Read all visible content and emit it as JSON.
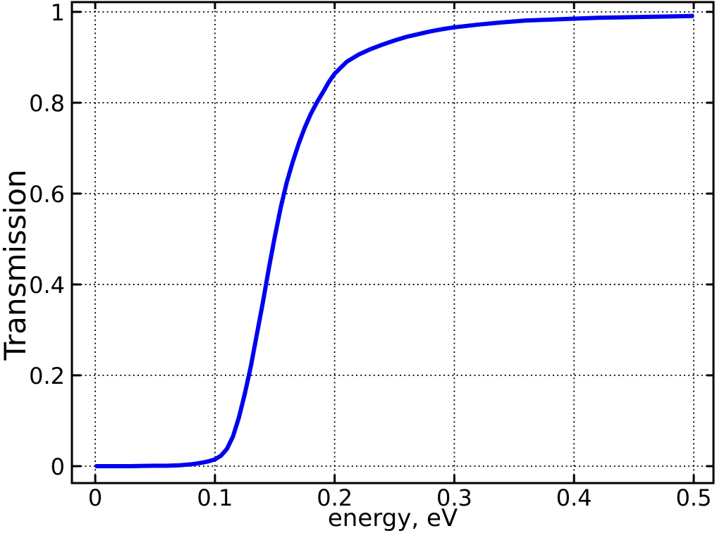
{
  "figure": {
    "background": "#ffffff",
    "frame_color": "#000000",
    "text_color": "#000000"
  },
  "chart_data": {
    "type": "line",
    "title": "",
    "xlabel": "energy, eV",
    "ylabel": "Transmission",
    "xlim": [
      -0.0195,
      0.5165
    ],
    "ylim": [
      -0.0372,
      1.0215
    ],
    "xticks": {
      "values": [
        0,
        0.1,
        0.2,
        0.3,
        0.4,
        0.5
      ],
      "labels": [
        "0",
        "0.1",
        "0.2",
        "0.3",
        "0.4",
        "0.5"
      ]
    },
    "yticks": {
      "values": [
        0,
        0.2,
        0.4,
        0.6,
        0.8,
        1
      ],
      "labels": [
        "0",
        "0.2",
        "0.4",
        "0.6",
        "0.8",
        "1"
      ]
    },
    "grid": {
      "visible": true,
      "style": "dotted",
      "color": "#000000"
    },
    "legend": {
      "visible": false
    },
    "series": [
      {
        "name": "transmission",
        "color": "#0000f0",
        "line_width": 6,
        "points": [
          [
            0.0,
            0.0
          ],
          [
            0.01,
            0.0
          ],
          [
            0.02,
            0.0
          ],
          [
            0.03,
            0.0
          ],
          [
            0.04,
            0.0005
          ],
          [
            0.05,
            0.001
          ],
          [
            0.06,
            0.001
          ],
          [
            0.07,
            0.002
          ],
          [
            0.08,
            0.004
          ],
          [
            0.09,
            0.008
          ],
          [
            0.095,
            0.011
          ],
          [
            0.1,
            0.015
          ],
          [
            0.105,
            0.023
          ],
          [
            0.11,
            0.038
          ],
          [
            0.115,
            0.065
          ],
          [
            0.12,
            0.107
          ],
          [
            0.125,
            0.16
          ],
          [
            0.13,
            0.22
          ],
          [
            0.135,
            0.29
          ],
          [
            0.14,
            0.36
          ],
          [
            0.145,
            0.435
          ],
          [
            0.15,
            0.505
          ],
          [
            0.155,
            0.57
          ],
          [
            0.16,
            0.625
          ],
          [
            0.165,
            0.67
          ],
          [
            0.17,
            0.71
          ],
          [
            0.175,
            0.745
          ],
          [
            0.18,
            0.775
          ],
          [
            0.185,
            0.8
          ],
          [
            0.19,
            0.822
          ],
          [
            0.195,
            0.845
          ],
          [
            0.2,
            0.864
          ],
          [
            0.21,
            0.89
          ],
          [
            0.22,
            0.906
          ],
          [
            0.23,
            0.918
          ],
          [
            0.24,
            0.928
          ],
          [
            0.25,
            0.937
          ],
          [
            0.26,
            0.945
          ],
          [
            0.27,
            0.951
          ],
          [
            0.28,
            0.957
          ],
          [
            0.29,
            0.962
          ],
          [
            0.3,
            0.966
          ],
          [
            0.32,
            0.972
          ],
          [
            0.34,
            0.977
          ],
          [
            0.36,
            0.981
          ],
          [
            0.38,
            0.983
          ],
          [
            0.4,
            0.985
          ],
          [
            0.42,
            0.987
          ],
          [
            0.44,
            0.988
          ],
          [
            0.46,
            0.989
          ],
          [
            0.48,
            0.99
          ],
          [
            0.5,
            0.991
          ]
        ]
      }
    ]
  }
}
